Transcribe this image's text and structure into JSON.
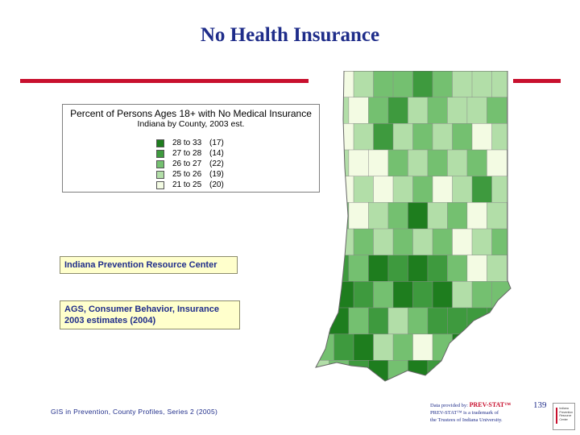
{
  "slide": {
    "title": "No Health Insurance",
    "footer": "GIS in Prevention, County Profiles, Series 2 (2005)",
    "page_number": "139"
  },
  "legend": {
    "title": "Percent of Persons Ages 18+ with No Medical Insurance",
    "subtitle": "Indiana by County, 2003 est.",
    "classes": [
      {
        "range": "28 to 33",
        "count": "(17)",
        "color": "#1e7d1e"
      },
      {
        "range": "27 to 28",
        "count": "(14)",
        "color": "#3e9a3e"
      },
      {
        "range": "26 to 27",
        "count": "(22)",
        "color": "#74c070"
      },
      {
        "range": "25 to 26",
        "count": "(19)",
        "color": "#b2dea8"
      },
      {
        "range": "21 to 25",
        "count": "(20)",
        "color": "#f3fbe3"
      }
    ]
  },
  "source_boxes": {
    "org": "Indiana Prevention Resource Center",
    "data_line1": "AGS, Consumer Behavior, Insurance",
    "data_line2": "2003 estimates (2004)"
  },
  "credit": {
    "line1_prefix": "Data provided by:",
    "brand": "PREV-STAT™",
    "line2": "PREV-STAT™ is a trademark of",
    "line3": "the Trustees of Indiana University."
  },
  "logo": {
    "text": "Indiana Prevention Resource Center"
  },
  "colors": {
    "title": "#1f2d8a",
    "rule": "#c8102e",
    "note_fill": "#ffffcc"
  },
  "map": {
    "region": "Indiana",
    "grid": [
      [
        0,
        4,
        3,
        2,
        2,
        1,
        2,
        3,
        3,
        3
      ],
      [
        0,
        3,
        4,
        2,
        1,
        3,
        2,
        3,
        3,
        2
      ],
      [
        0,
        4,
        3,
        1,
        3,
        2,
        3,
        2,
        4,
        3
      ],
      [
        1,
        3,
        4,
        4,
        2,
        3,
        2,
        3,
        2,
        4
      ],
      [
        2,
        4,
        3,
        4,
        3,
        2,
        4,
        3,
        1,
        3
      ],
      [
        3,
        2,
        4,
        3,
        2,
        0,
        3,
        2,
        4,
        3
      ],
      [
        4,
        3,
        2,
        3,
        2,
        3,
        2,
        4,
        3,
        2
      ],
      [
        3,
        1,
        2,
        0,
        1,
        0,
        1,
        2,
        4,
        3
      ],
      [
        2,
        0,
        1,
        2,
        0,
        1,
        0,
        3,
        2,
        2
      ],
      [
        1,
        0,
        2,
        1,
        3,
        2,
        1,
        1,
        1,
        1
      ],
      [
        2,
        1,
        0,
        3,
        2,
        4,
        2,
        0,
        1,
        2
      ],
      [
        3,
        2,
        1,
        0,
        2,
        0,
        1,
        0,
        2,
        3
      ]
    ]
  }
}
